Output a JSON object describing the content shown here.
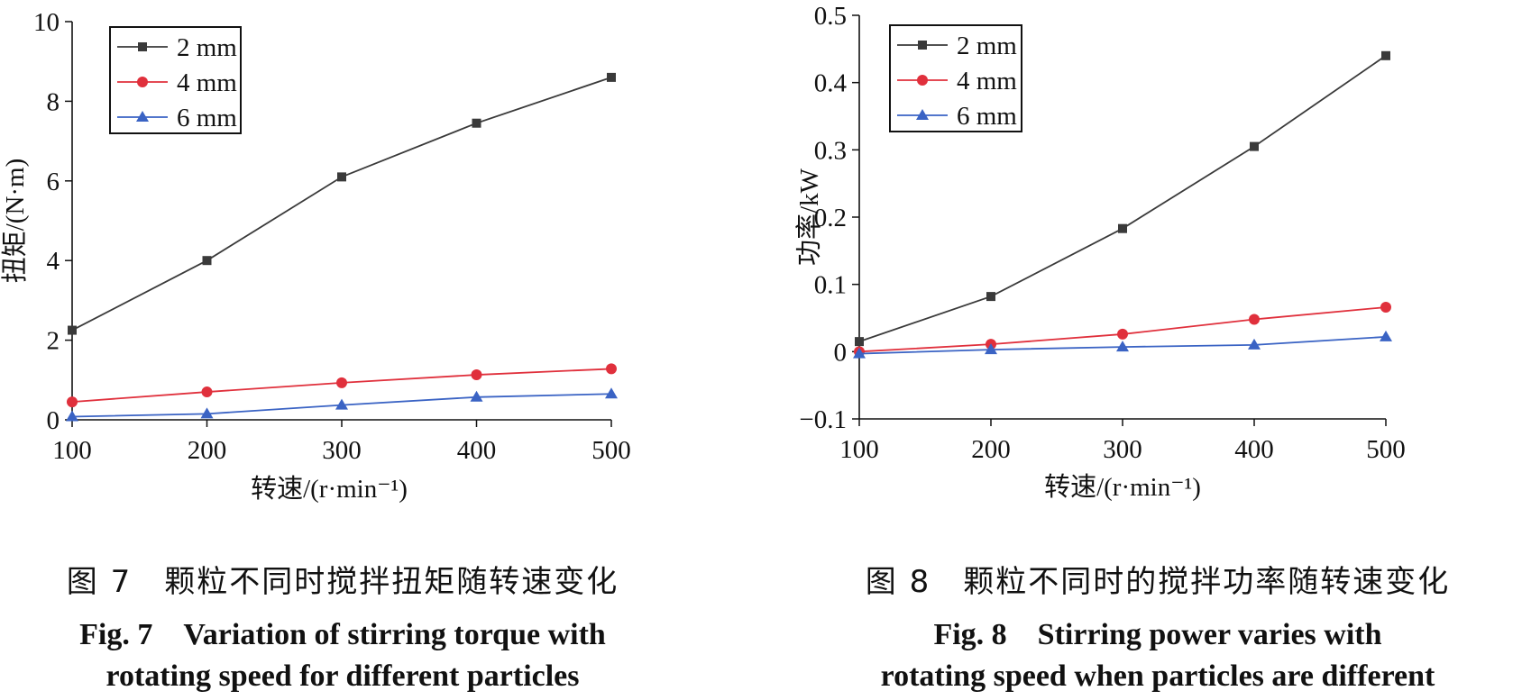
{
  "chart_data": [
    {
      "type": "line",
      "xlabel": "转速/(r·min⁻¹)",
      "ylabel": "扭矩/(N·m)",
      "x": [
        100,
        200,
        300,
        400,
        500
      ],
      "xlim": [
        100,
        500
      ],
      "ylim": [
        0,
        10
      ],
      "xticks": [
        "100",
        "200",
        "300",
        "400",
        "500"
      ],
      "yticks": [
        "0",
        "2",
        "4",
        "6",
        "8",
        "10"
      ],
      "legend_position": "top-left",
      "series": [
        {
          "name": "2 mm",
          "values": [
            2.25,
            4.0,
            6.1,
            7.45,
            8.6
          ],
          "color": "#3a3a3a",
          "marker": "square"
        },
        {
          "name": "4 mm",
          "values": [
            0.45,
            0.7,
            0.93,
            1.13,
            1.28
          ],
          "color": "#e0303c",
          "marker": "circle"
        },
        {
          "name": "6 mm",
          "values": [
            0.08,
            0.15,
            0.37,
            0.57,
            0.65
          ],
          "color": "#3a63c4",
          "marker": "triangle"
        }
      ],
      "caption_cn": "图 7　颗粒不同时搅拌扭矩随转速变化",
      "caption_en_line1": "Fig. 7　Variation of stirring torque with",
      "caption_en_line2": "rotating speed for different particles"
    },
    {
      "type": "line",
      "xlabel": "转速/(r·min⁻¹)",
      "ylabel": "功率/kW",
      "x": [
        100,
        200,
        300,
        400,
        500
      ],
      "xlim": [
        100,
        500
      ],
      "ylim": [
        -0.1,
        0.5
      ],
      "xticks": [
        "100",
        "200",
        "300",
        "400",
        "500"
      ],
      "yticks": [
        "−0.1",
        "0",
        "0.1",
        "0.2",
        "0.3",
        "0.4",
        "0.5"
      ],
      "legend_position": "top-left",
      "series": [
        {
          "name": "2 mm",
          "values": [
            0.015,
            0.082,
            0.183,
            0.305,
            0.44
          ],
          "color": "#3a3a3a",
          "marker": "square"
        },
        {
          "name": "4 mm",
          "values": [
            0.0,
            0.011,
            0.026,
            0.048,
            0.066
          ],
          "color": "#e0303c",
          "marker": "circle"
        },
        {
          "name": "6 mm",
          "values": [
            -0.003,
            0.003,
            0.007,
            0.01,
            0.022
          ],
          "color": "#3a63c4",
          "marker": "triangle"
        }
      ],
      "caption_cn": "图 8　颗粒不同时的搅拌功率随转速变化",
      "caption_en_line1": "Fig. 8　Stirring power varies with",
      "caption_en_line2": "rotating speed when particles are different"
    }
  ]
}
